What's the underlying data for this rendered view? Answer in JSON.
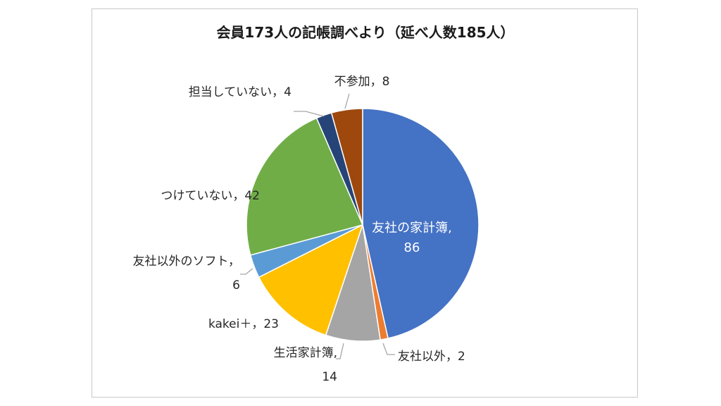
{
  "chart_data": {
    "type": "pie",
    "title": "会員173人の記帳調べより（延べ人数185人）",
    "slices": [
      {
        "label": "友社の家計簿",
        "value": 86,
        "color": "#4472c4",
        "display": [
          "友社の家計簿,",
          "86"
        ],
        "inside": true
      },
      {
        "label": "友社以外",
        "value": 2,
        "color": "#ed7d31",
        "display": [
          "友社以外，2"
        ]
      },
      {
        "label": "生活家計簿",
        "value": 14,
        "color": "#a5a5a5",
        "display": [
          "生活家計簿,",
          "14"
        ]
      },
      {
        "label": "kakei＋",
        "value": 23,
        "color": "#ffc000",
        "display": [
          "kakei＋，23"
        ]
      },
      {
        "label": "友社以外のソフト",
        "value": 6,
        "color": "#5b9bd5",
        "display": [
          "友社以外のソフト，",
          "6"
        ]
      },
      {
        "label": "つけていない",
        "value": 42,
        "color": "#70ad47",
        "display": [
          "つけていない，42"
        ]
      },
      {
        "label": "担当していない",
        "value": 4,
        "color": "#264478",
        "display": [
          "担当していない，4"
        ]
      },
      {
        "label": "不参加",
        "value": 8,
        "color": "#9e480e",
        "display": [
          "不参加，8"
        ]
      }
    ]
  }
}
